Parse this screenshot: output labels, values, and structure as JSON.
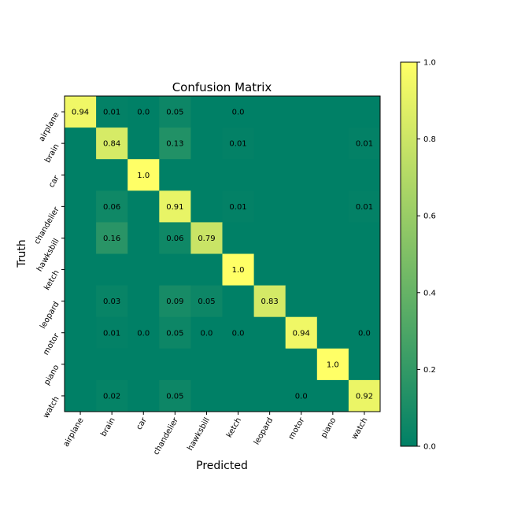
{
  "chart_data": {
    "type": "heatmap",
    "title": "Confusion Matrix",
    "xlabel": "Predicted",
    "ylabel": "Truth",
    "x_categories": [
      "airplane",
      "brain",
      "car",
      "chandelier",
      "hawksbill",
      "ketch",
      "leopard",
      "motor",
      "piano",
      "watch"
    ],
    "y_categories": [
      "airplane",
      "brain",
      "car",
      "chandelier",
      "hawksbill",
      "ketch",
      "leopard",
      "motor",
      "piano",
      "watch"
    ],
    "matrix": [
      [
        0.94,
        0.01,
        0.0,
        0.05,
        0,
        0.0,
        0,
        0,
        0,
        0
      ],
      [
        0,
        0.84,
        0,
        0.13,
        0,
        0.01,
        0,
        0,
        0,
        0.01
      ],
      [
        0,
        0,
        1.0,
        0,
        0,
        0,
        0,
        0,
        0,
        0
      ],
      [
        0,
        0.06,
        0,
        0.91,
        0,
        0.01,
        0,
        0,
        0,
        0.01
      ],
      [
        0,
        0.16,
        0,
        0.06,
        0.79,
        0,
        0,
        0,
        0,
        0
      ],
      [
        0,
        0,
        0,
        0,
        0,
        1.0,
        0,
        0,
        0,
        0
      ],
      [
        0,
        0.03,
        0,
        0.09,
        0.05,
        0,
        0.83,
        0,
        0,
        0
      ],
      [
        0,
        0.01,
        0.0,
        0.05,
        0.0,
        0.0,
        0,
        0.94,
        0,
        0.0
      ],
      [
        0,
        0,
        0,
        0,
        0,
        0,
        0,
        0,
        1.0,
        0
      ],
      [
        0,
        0.02,
        0,
        0.05,
        0,
        0,
        0,
        0.0,
        0,
        0.92
      ]
    ],
    "cell_labels": [
      [
        "0.94",
        "0.01",
        "0.0",
        "0.05",
        "",
        "0.0",
        "",
        "",
        "",
        ""
      ],
      [
        "",
        "0.84",
        "",
        "0.13",
        "",
        "0.01",
        "",
        "",
        "",
        "0.01"
      ],
      [
        "",
        "",
        "1.0",
        "",
        "",
        "",
        "",
        "",
        "",
        ""
      ],
      [
        "",
        "0.06",
        "",
        "0.91",
        "",
        "0.01",
        "",
        "",
        "",
        "0.01"
      ],
      [
        "",
        "0.16",
        "",
        "0.06",
        "0.79",
        "",
        "",
        "",
        "",
        ""
      ],
      [
        "",
        "",
        "",
        "",
        "",
        "1.0",
        "",
        "",
        "",
        ""
      ],
      [
        "",
        "0.03",
        "",
        "0.09",
        "0.05",
        "",
        "0.83",
        "",
        "",
        ""
      ],
      [
        "",
        "0.01",
        "0.0",
        "0.05",
        "0.0",
        "0.0",
        "",
        "0.94",
        "",
        "0.0"
      ],
      [
        "",
        "",
        "",
        "",
        "",
        "",
        "",
        "",
        "1.0",
        ""
      ],
      [
        "",
        "0.02",
        "",
        "0.05",
        "",
        "",
        "",
        "0.0",
        "",
        "0.92"
      ]
    ],
    "value_range": [
      0.0,
      1.0
    ],
    "colormap": "summer",
    "colormap_low": "#008066",
    "colormap_high": "#ffff66",
    "colorbar": {
      "ticks": [
        0.0,
        0.2,
        0.4,
        0.6,
        0.8,
        1.0
      ],
      "tick_labels": [
        "0.0",
        "0.2",
        "0.4",
        "0.6",
        "0.8",
        "1.0"
      ]
    },
    "grid": false
  }
}
